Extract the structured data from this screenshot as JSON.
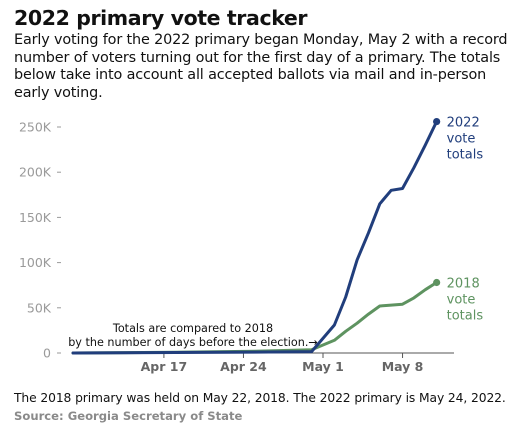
{
  "title": "2022 primary vote tracker",
  "subtitle": "Early voting for the 2022 primary began Monday, May 2 with a record number of voters turning out for the first day of a primary. The totals below take into account all accepted ballots via mail and in-person early voting.",
  "footnote": "The 2018 primary was held on May 22, 2018. The 2022 primary is May 24, 2022.",
  "source": "Source: Georgia Secretary of State",
  "chart_data": {
    "type": "line",
    "x_unit": "date",
    "x_ticks": [
      {
        "date": "2022-04-17",
        "label": "Apr 17"
      },
      {
        "date": "2022-04-24",
        "label": "Apr 24"
      },
      {
        "date": "2022-05-01",
        "label": "May 1"
      },
      {
        "date": "2022-05-08",
        "label": "May 8"
      }
    ],
    "y_ticks": [
      {
        "value": 0,
        "label": "0"
      },
      {
        "value": 50000,
        "label": "50K"
      },
      {
        "value": 100000,
        "label": "100K"
      },
      {
        "value": 150000,
        "label": "150K"
      },
      {
        "value": 200000,
        "label": "200K"
      },
      {
        "value": 250000,
        "label": "250K"
      }
    ],
    "xlim": [
      "2022-04-09",
      "2022-05-12"
    ],
    "ylim": [
      0,
      250000
    ],
    "grid": false,
    "series": [
      {
        "name": "2022 vote totals",
        "label_lines": [
          "2022",
          "vote",
          "totals"
        ],
        "color": "#213e7c",
        "points": [
          {
            "x": "2022-04-09",
            "y": 0
          },
          {
            "x": "2022-04-18",
            "y": 500
          },
          {
            "x": "2022-04-25",
            "y": 1000
          },
          {
            "x": "2022-04-30",
            "y": 1600
          },
          {
            "x": "2022-05-02",
            "y": 31000
          },
          {
            "x": "2022-05-03",
            "y": 62000
          },
          {
            "x": "2022-05-04",
            "y": 103000
          },
          {
            "x": "2022-05-05",
            "y": 133000
          },
          {
            "x": "2022-05-06",
            "y": 165000
          },
          {
            "x": "2022-05-07",
            "y": 180000
          },
          {
            "x": "2022-05-08",
            "y": 182000
          },
          {
            "x": "2022-05-09",
            "y": 205000
          },
          {
            "x": "2022-05-10",
            "y": 230000
          },
          {
            "x": "2022-05-11",
            "y": 256000
          }
        ]
      },
      {
        "name": "2018 vote totals",
        "label_lines": [
          "2018",
          "vote",
          "totals"
        ],
        "color": "#5e9360",
        "points": [
          {
            "x": "2022-04-09",
            "y": 0
          },
          {
            "x": "2022-04-18",
            "y": 800
          },
          {
            "x": "2022-04-25",
            "y": 2000
          },
          {
            "x": "2022-04-30",
            "y": 3500
          },
          {
            "x": "2022-05-02",
            "y": 14000
          },
          {
            "x": "2022-05-03",
            "y": 24000
          },
          {
            "x": "2022-05-04",
            "y": 33000
          },
          {
            "x": "2022-05-05",
            "y": 43000
          },
          {
            "x": "2022-05-06",
            "y": 52000
          },
          {
            "x": "2022-05-07",
            "y": 53000
          },
          {
            "x": "2022-05-08",
            "y": 54000
          },
          {
            "x": "2022-05-09",
            "y": 61000
          },
          {
            "x": "2022-05-10",
            "y": 70000
          },
          {
            "x": "2022-05-11",
            "y": 78000
          }
        ]
      }
    ],
    "annotation": {
      "lines": [
        "Totals are compared to 2018",
        "by the number of days before the election.→"
      ]
    }
  }
}
